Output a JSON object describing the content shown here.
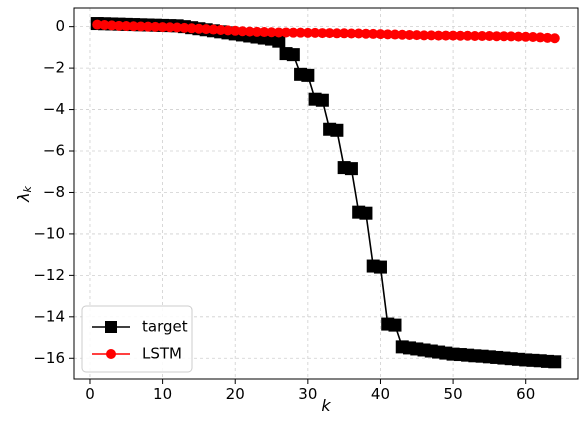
{
  "chart_data": {
    "type": "line",
    "xlabel": "k",
    "ylabel": "λ",
    "ylabel_subscript": "k",
    "xlim": [
      -2.2,
      67.2
    ],
    "ylim": [
      -17,
      0.9
    ],
    "xticks": [
      0,
      10,
      20,
      30,
      40,
      50,
      60
    ],
    "yticks": [
      0,
      -2,
      -4,
      -6,
      -8,
      -10,
      -12,
      -14,
      -16
    ],
    "ytick_labels": [
      "0",
      "−2",
      "−4",
      "−6",
      "−8",
      "−10",
      "−12",
      "−14",
      "−16"
    ],
    "grid": true,
    "legend_position": "lower-left",
    "x": [
      1,
      2,
      3,
      4,
      5,
      6,
      7,
      8,
      9,
      10,
      11,
      12,
      13,
      14,
      15,
      16,
      17,
      18,
      19,
      20,
      21,
      22,
      23,
      24,
      25,
      26,
      27,
      28,
      29,
      30,
      31,
      32,
      33,
      34,
      35,
      36,
      37,
      38,
      39,
      40,
      41,
      42,
      43,
      44,
      45,
      46,
      47,
      48,
      49,
      50,
      51,
      52,
      53,
      54,
      55,
      56,
      57,
      58,
      59,
      60,
      61,
      62,
      63,
      64
    ],
    "series": [
      {
        "name": "target",
        "color": "#000000",
        "marker": "square",
        "values": [
          0.15,
          0.14,
          0.13,
          0.12,
          0.11,
          0.1,
          0.09,
          0.08,
          0.07,
          0.06,
          0.05,
          0.04,
          0.0,
          -0.05,
          -0.1,
          -0.15,
          -0.2,
          -0.25,
          -0.3,
          -0.35,
          -0.4,
          -0.45,
          -0.5,
          -0.55,
          -0.6,
          -0.7,
          -1.3,
          -1.35,
          -2.3,
          -2.35,
          -3.5,
          -3.55,
          -4.95,
          -5.0,
          -6.8,
          -6.85,
          -8.95,
          -9.0,
          -11.55,
          -11.6,
          -14.35,
          -14.4,
          -15.45,
          -15.5,
          -15.55,
          -15.6,
          -15.65,
          -15.7,
          -15.75,
          -15.8,
          -15.82,
          -15.85,
          -15.88,
          -15.9,
          -15.93,
          -15.96,
          -15.99,
          -16.02,
          -16.05,
          -16.08,
          -16.1,
          -16.12,
          -16.15,
          -16.17
        ]
      },
      {
        "name": "LSTM",
        "color": "#ff0000",
        "marker": "circle",
        "values": [
          0.1,
          0.08,
          0.06,
          0.04,
          0.03,
          0.02,
          0.01,
          0.0,
          -0.01,
          -0.02,
          -0.03,
          -0.04,
          -0.06,
          -0.08,
          -0.1,
          -0.12,
          -0.14,
          -0.16,
          -0.18,
          -0.2,
          -0.22,
          -0.24,
          -0.25,
          -0.26,
          -0.27,
          -0.28,
          -0.28,
          -0.29,
          -0.29,
          -0.3,
          -0.3,
          -0.31,
          -0.31,
          -0.32,
          -0.32,
          -0.33,
          -0.33,
          -0.34,
          -0.35,
          -0.36,
          -0.37,
          -0.38,
          -0.39,
          -0.4,
          -0.41,
          -0.42,
          -0.42,
          -0.43,
          -0.43,
          -0.43,
          -0.44,
          -0.44,
          -0.45,
          -0.45,
          -0.45,
          -0.46,
          -0.46,
          -0.47,
          -0.48,
          -0.49,
          -0.5,
          -0.52,
          -0.54,
          -0.56
        ]
      }
    ]
  }
}
